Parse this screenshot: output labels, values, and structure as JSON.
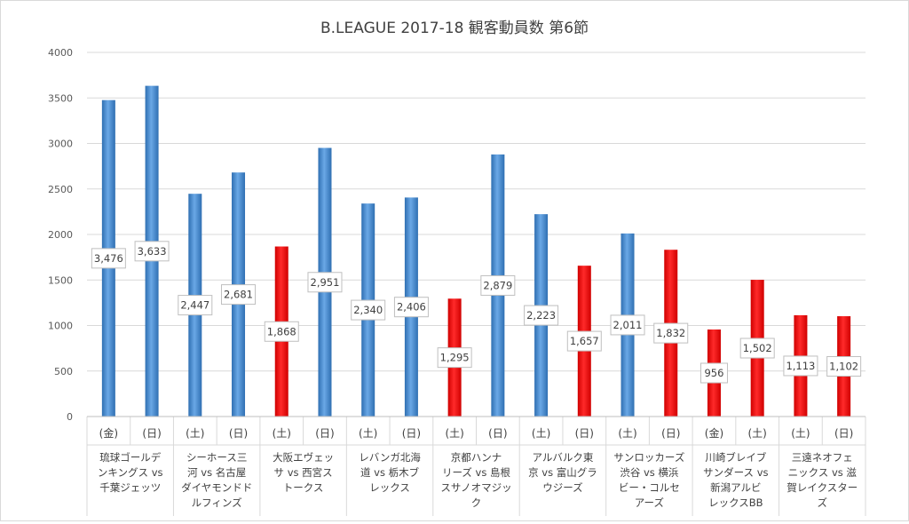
{
  "chart_data": {
    "type": "bar",
    "title": "B.LEAGUE 2017-18 観客動員数 第6節",
    "xlabel": "",
    "ylabel": "",
    "ylim": [
      0,
      4000
    ],
    "yticks": [
      0,
      500,
      1000,
      1500,
      2000,
      2500,
      3000,
      3500,
      4000
    ],
    "grid": true,
    "legend": "none",
    "colors": {
      "weekday_blue": "#4a8fd4",
      "weekday_blue_dark": "#2f6fb2",
      "highlight_red": "#ee0000",
      "grid": "#d9d9d9",
      "axis_text": "#595959"
    },
    "bars": [
      {
        "day": "(金)",
        "value": 3476,
        "label": "3,476",
        "color": "blue"
      },
      {
        "day": "(日)",
        "value": 3633,
        "label": "3,633",
        "color": "blue"
      },
      {
        "day": "(土)",
        "value": 2447,
        "label": "2,447",
        "color": "blue"
      },
      {
        "day": "(日)",
        "value": 2681,
        "label": "2,681",
        "color": "blue"
      },
      {
        "day": "(土)",
        "value": 1868,
        "label": "1,868",
        "color": "red"
      },
      {
        "day": "(日)",
        "value": 2951,
        "label": "2,951",
        "color": "blue"
      },
      {
        "day": "(土)",
        "value": 2340,
        "label": "2,340",
        "color": "blue"
      },
      {
        "day": "(日)",
        "value": 2406,
        "label": "2,406",
        "color": "blue"
      },
      {
        "day": "(土)",
        "value": 1295,
        "label": "1,295",
        "color": "red"
      },
      {
        "day": "(日)",
        "value": 2879,
        "label": "2,879",
        "color": "blue"
      },
      {
        "day": "(土)",
        "value": 2223,
        "label": "2,223",
        "color": "blue"
      },
      {
        "day": "(日)",
        "value": 1657,
        "label": "1,657",
        "color": "red"
      },
      {
        "day": "(土)",
        "value": 2011,
        "label": "2,011",
        "color": "blue"
      },
      {
        "day": "(日)",
        "value": 1832,
        "label": "1,832",
        "color": "red"
      },
      {
        "day": "(金)",
        "value": 956,
        "label": "956",
        "color": "red"
      },
      {
        "day": "(土)",
        "value": 1502,
        "label": "1,502",
        "color": "red"
      },
      {
        "day": "(土)",
        "value": 1113,
        "label": "1,113",
        "color": "red"
      },
      {
        "day": "(日)",
        "value": 1102,
        "label": "1,102",
        "color": "red"
      }
    ],
    "matchups": [
      {
        "lines": [
          "琉球ゴールデ",
          "ンキングス vs",
          "千葉ジェッツ"
        ]
      },
      {
        "lines": [
          "シーホース三",
          "河 vs 名古屋",
          "ダイヤモンドド",
          "ルフィンズ"
        ]
      },
      {
        "lines": [
          "大阪エヴェッ",
          "サ vs 西宮ス",
          "トークス"
        ]
      },
      {
        "lines": [
          "レバンガ北海",
          "道 vs 栃木ブ",
          "レックス"
        ]
      },
      {
        "lines": [
          "京都ハンナ",
          "リーズ vs 島根",
          "スサノオマジッ",
          "ク"
        ]
      },
      {
        "lines": [
          "アルバルク東",
          "京 vs 富山グラ",
          "ウジーズ"
        ]
      },
      {
        "lines": [
          "サンロッカーズ",
          "渋谷 vs 横浜",
          "ビー・コルセ",
          "アーズ"
        ]
      },
      {
        "lines": [
          "川崎ブレイブ",
          "サンダース vs",
          "新潟アルビ",
          "レックスBB"
        ]
      },
      {
        "lines": [
          "三遠ネオフェ",
          "ニックス vs 滋",
          "賀レイクスター",
          "ズ"
        ]
      }
    ]
  }
}
